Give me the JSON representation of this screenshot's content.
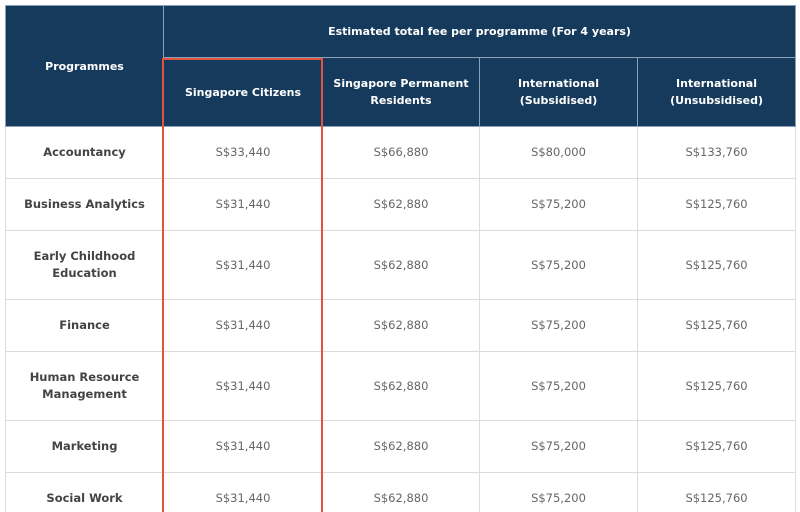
{
  "table": {
    "header_programmes": "Programmes",
    "header_group": "Estimated total fee per programme (For 4 years)",
    "columns": [
      "Singapore Citizens",
      "Singapore Permanent Residents",
      "International (Subsidised)",
      "International (Unsubsidised)"
    ],
    "rows": [
      {
        "programme": "Accountancy",
        "fees": [
          "S$33,440",
          "S$66,880",
          "S$80,000",
          "S$133,760"
        ]
      },
      {
        "programme": "Business Analytics",
        "fees": [
          "S$31,440",
          "S$62,880",
          "S$75,200",
          "S$125,760"
        ]
      },
      {
        "programme": "Early Childhood Education",
        "fees": [
          "S$31,440",
          "S$62,880",
          "S$75,200",
          "S$125,760"
        ]
      },
      {
        "programme": "Finance",
        "fees": [
          "S$31,440",
          "S$62,880",
          "S$75,200",
          "S$125,760"
        ]
      },
      {
        "programme": "Human Resource Management",
        "fees": [
          "S$31,440",
          "S$62,880",
          "S$75,200",
          "S$125,760"
        ]
      },
      {
        "programme": "Marketing",
        "fees": [
          "S$31,440",
          "S$62,880",
          "S$75,200",
          "S$125,760"
        ]
      },
      {
        "programme": "Social Work",
        "fees": [
          "S$31,440",
          "S$62,880",
          "S$75,200",
          "S$125,760"
        ]
      }
    ]
  },
  "colors": {
    "header_bg": "#163a5c",
    "highlight": "#e0533c"
  }
}
